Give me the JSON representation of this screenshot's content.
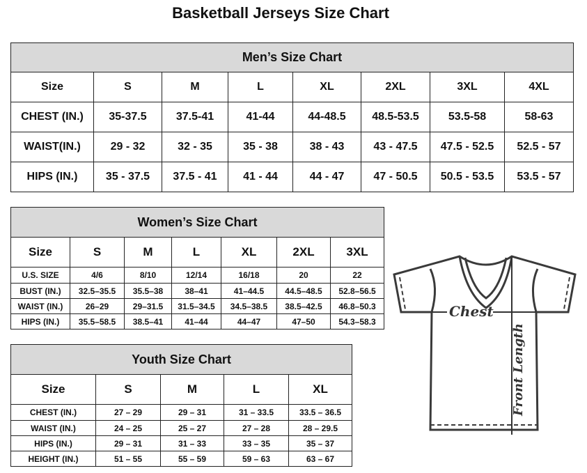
{
  "title": "Basketball Jerseys Size Chart",
  "men": {
    "heading": "Men’s Size Chart",
    "rows": [
      [
        "Size",
        "S",
        "M",
        "L",
        "XL",
        "2XL",
        "3XL",
        "4XL"
      ],
      [
        "CHEST (IN.)",
        "35-37.5",
        "37.5-41",
        "41-44",
        "44-48.5",
        "48.5-53.5",
        "53.5-58",
        "58-63"
      ],
      [
        "WAIST(IN.)",
        "29 - 32",
        "32 - 35",
        "35 - 38",
        "38 - 43",
        "43 - 47.5",
        "47.5 - 52.5",
        "52.5 - 57"
      ],
      [
        "HIPS (IN.)",
        "35 - 37.5",
        "37.5 - 41",
        "41 - 44",
        "44 - 47",
        "47 - 50.5",
        "50.5 - 53.5",
        "53.5 - 57"
      ]
    ]
  },
  "women": {
    "heading": "Women’s Size Chart",
    "rows": [
      [
        "Size",
        "S",
        "M",
        "L",
        "XL",
        "2XL",
        "3XL"
      ],
      [
        "U.S.  SIZE",
        "4/6",
        "8/10",
        "12/14",
        "16/18",
        "20",
        "22"
      ],
      [
        "BUST  (IN.)",
        "32.5–35.5",
        "35.5–38",
        "38–41",
        "41–44.5",
        "44.5–48.5",
        "52.8–56.5"
      ],
      [
        "WAIST  (IN.)",
        "26–29",
        "29–31.5",
        "31.5–34.5",
        "34.5–38.5",
        "38.5–42.5",
        "46.8–50.3"
      ],
      [
        "HIPS  (IN.)",
        "35.5–58.5",
        "38.5–41",
        "41–44",
        "44–47",
        "47–50",
        "54.3–58.3"
      ]
    ]
  },
  "youth": {
    "heading": "Youth Size Chart",
    "rows": [
      [
        "Size",
        "S",
        "M",
        "L",
        "XL"
      ],
      [
        "CHEST  (IN.)",
        "27  –  29",
        "29  –  31",
        "31  –  33.5",
        "33.5  –  36.5"
      ],
      [
        "WAIST  (IN.)",
        "24  –  25",
        "25  –  27",
        "27  –  28",
        "28  –  29.5"
      ],
      [
        "HIPS  (IN.)",
        "29  –  31",
        "31  –  33",
        "33  –  35",
        "35  –  37"
      ],
      [
        "HEIGHT  (IN.)",
        "51  –  55",
        "55  –  59",
        "59  –  63",
        "63  –  67"
      ]
    ]
  },
  "diagram": {
    "chest_label": "Chest",
    "length_label": "Front Length"
  }
}
